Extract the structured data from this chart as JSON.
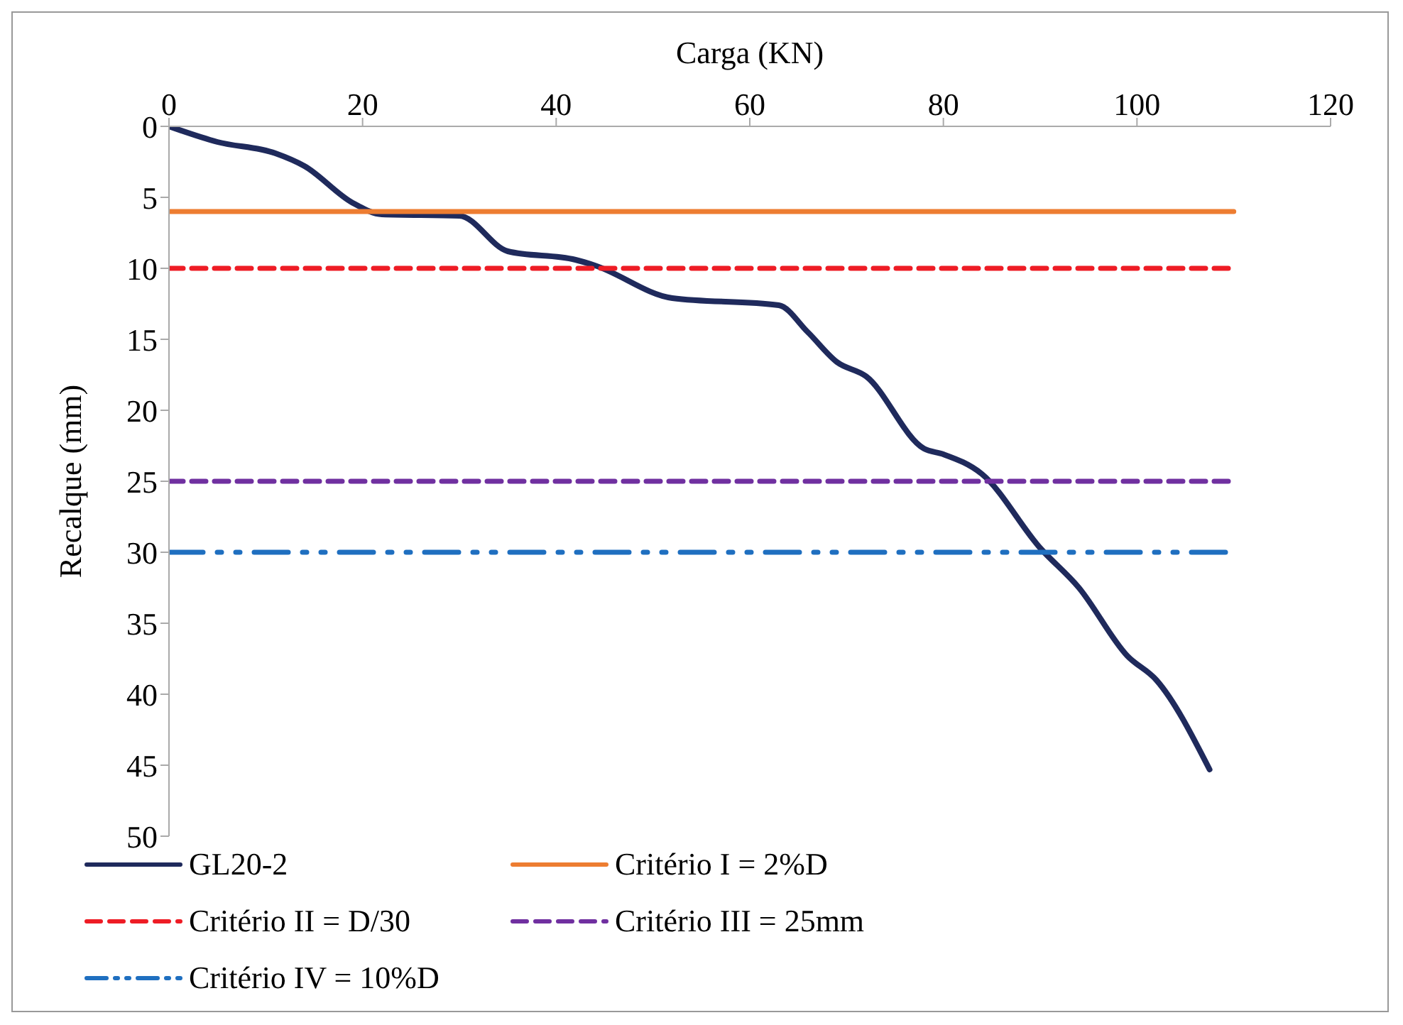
{
  "chart_data": {
    "type": "line",
    "xlabel": "Carga (KN)",
    "ylabel": "Recalque (mm)",
    "xlim": [
      0,
      120
    ],
    "xticks": [
      0,
      20,
      40,
      60,
      80,
      100,
      120
    ],
    "ylim": [
      50,
      0
    ],
    "yticks": [
      0,
      5,
      10,
      15,
      20,
      25,
      30,
      35,
      40,
      45,
      50
    ],
    "grid": false,
    "legend": "bottom",
    "marker": "none",
    "series": [
      {
        "name": "GL20-2",
        "color": "#1f2a5c",
        "line_style": "solid",
        "x": [
          0,
          5,
          11,
          14,
          19,
          22,
          30,
          35,
          42,
          44,
          52,
          63,
          66,
          69,
          72,
          78,
          80,
          84,
          90,
          94,
          99,
          102,
          107.5
        ],
        "values": [
          0,
          1.1,
          1.9,
          2.8,
          5.4,
          6.2,
          6.3,
          8.8,
          9.4,
          9.8,
          12.1,
          12.6,
          14.5,
          16.6,
          17.6,
          22.7,
          23.1,
          24.5,
          29.7,
          32.5,
          37.3,
          39,
          45.3
        ]
      },
      {
        "name": "Critério I = 2%D",
        "color": "#ed7d31",
        "line_style": "solid",
        "x": [
          0,
          110
        ],
        "values": [
          6,
          6
        ]
      },
      {
        "name": "Critério II = D/30",
        "color": "#ee1c25",
        "line_style": "dashed",
        "x": [
          0,
          110
        ],
        "values": [
          10,
          10
        ]
      },
      {
        "name": "Critério III = 25mm",
        "color": "#7030a0",
        "line_style": "dashed",
        "x": [
          0,
          110
        ],
        "values": [
          25,
          25
        ]
      },
      {
        "name": "Critério IV = 10%D",
        "color": "#1f6fc0",
        "line_style": "dashdot",
        "x": [
          0,
          110
        ],
        "values": [
          30,
          30
        ]
      }
    ]
  }
}
